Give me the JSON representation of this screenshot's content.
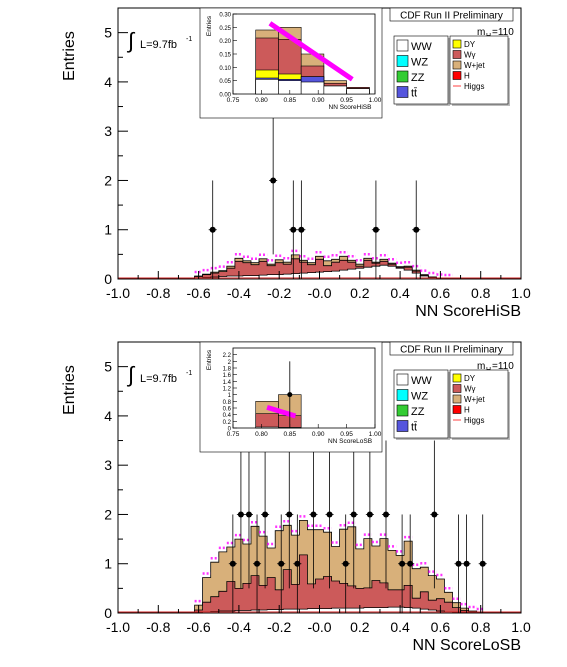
{
  "chart_data": [
    {
      "type": "bar",
      "subtype": "stacked-histogram",
      "header": "CDF Run II Preliminary",
      "lumi": "L=9.7fb",
      "lumi_sup": "-1",
      "lumi_integral_symbol": "∫",
      "mass_label": "m",
      "mass_sub": "H",
      "mass_value": "=110",
      "xlabel": "NN ScoreHiSB",
      "ylabel": "Entries",
      "xlim": [
        -1.0,
        1.0
      ],
      "ylim": [
        0,
        5.5
      ],
      "xticks": [
        "-1.0",
        "-0.8",
        "-0.6",
        "-0.4",
        "-0.2",
        "-0.0",
        "0.2",
        "0.4",
        "0.6",
        "0.8",
        "1.0"
      ],
      "yticks": [
        "0",
        "1",
        "2",
        "3",
        "4",
        "5"
      ],
      "legend": [
        {
          "label": "WW",
          "color": "#ffffff",
          "kind": "box"
        },
        {
          "label": "DY",
          "color": "#ffff00",
          "kind": "box"
        },
        {
          "label": "WZ",
          "color": "#00ffff",
          "kind": "box"
        },
        {
          "label": "Wγ",
          "color": "#cc5a5a",
          "kind": "box"
        },
        {
          "label": "ZZ",
          "color": "#33cc33",
          "kind": "box"
        },
        {
          "label": "W+jet",
          "color": "#d8b07a",
          "kind": "box"
        },
        {
          "label": "tt̄",
          "color": "#5555dd",
          "kind": "box"
        },
        {
          "label": "H",
          "color": "#ff0000",
          "kind": "box"
        },
        {
          "label": "Higgs",
          "color": "#ff4040",
          "kind": "line"
        }
      ],
      "bin_edges_start": -0.62,
      "bin_width": 0.04,
      "series": [
        {
          "name": "WW",
          "color": "#ffffff",
          "values": [
            0.02,
            0.03,
            0.04,
            0.05,
            0.06,
            0.06,
            0.07,
            0.07,
            0.08,
            0.09,
            0.09,
            0.1,
            0.11,
            0.12,
            0.13,
            0.14,
            0.15,
            0.16,
            0.18,
            0.2,
            0.22,
            0.24,
            0.26,
            0.28,
            0.26,
            0.22,
            0.18,
            0.12,
            0.06,
            0.03,
            0.01,
            0.0
          ]
        },
        {
          "name": "Wγ",
          "color": "#cc5a5a",
          "values": [
            0.03,
            0.06,
            0.08,
            0.1,
            0.16,
            0.3,
            0.26,
            0.22,
            0.28,
            0.18,
            0.24,
            0.2,
            0.3,
            0.22,
            0.16,
            0.26,
            0.12,
            0.18,
            0.2,
            0.14,
            0.04,
            0.14,
            0.06,
            0.08,
            0.04,
            0.02,
            0.06,
            0.04,
            0.02,
            0.01,
            0.0,
            0.0
          ]
        },
        {
          "name": "W+jet",
          "color": "#d8b07a",
          "values": [
            0.01,
            0.01,
            0.02,
            0.02,
            0.04,
            0.06,
            0.04,
            0.04,
            0.05,
            0.03,
            0.06,
            0.04,
            0.08,
            0.04,
            0.04,
            0.06,
            0.1,
            0.06,
            0.08,
            0.04,
            0.04,
            0.04,
            0.02,
            0.04,
            0.02,
            0.01,
            0.02,
            0.02,
            0.01,
            0.0,
            0.0,
            0.0
          ]
        }
      ],
      "band_color": "#ff00ff",
      "data_points": [
        {
          "x": -0.53,
          "y": 1,
          "err": 1.0
        },
        {
          "x": -0.23,
          "y": 2,
          "err": 1.5
        },
        {
          "x": -0.13,
          "y": 1,
          "err": 1.0
        },
        {
          "x": -0.09,
          "y": 1,
          "err": 1.0
        },
        {
          "x": 0.28,
          "y": 1,
          "err": 1.0
        },
        {
          "x": 0.48,
          "y": 1,
          "err": 1.0
        }
      ],
      "inset": {
        "ylabel": "Entries",
        "xlabel": "NN ScoreHiSB",
        "xlim": [
          0.75,
          1.0
        ],
        "ylim": [
          0,
          0.3
        ],
        "xticks": [
          "0.75",
          "0.80",
          "0.85",
          "0.90",
          "0.95",
          "1.00"
        ],
        "yticks": [
          "0.00",
          "0.05",
          "0.10",
          "0.15",
          "0.20",
          "0.25",
          "0.30"
        ],
        "bin_edges": [
          0.75,
          0.79,
          0.83,
          0.87,
          0.91,
          0.95,
          0.99
        ],
        "stack": [
          {
            "name": "WW",
            "color": "#ffffff",
            "values": [
              0.0,
              0.055,
              0.05,
              0.045,
              0.03,
              0.02
            ]
          },
          {
            "name": "tt̄",
            "color": "#5555dd",
            "values": [
              0.0,
              0.005,
              0.005,
              0.02,
              0.0,
              0.0
            ]
          },
          {
            "name": "DY",
            "color": "#ffff00",
            "values": [
              0.0,
              0.03,
              0.02,
              0.0,
              0.0,
              0.0
            ]
          },
          {
            "name": "Wγ",
            "color": "#cc5a5a",
            "values": [
              0.0,
              0.12,
              0.13,
              0.04,
              0.01,
              0.005
            ]
          },
          {
            "name": "W+jet",
            "color": "#d8b07a",
            "values": [
              0.0,
              0.03,
              0.045,
              0.045,
              0.01,
              0.0
            ]
          }
        ],
        "higgs_line": {
          "x": [
            0.815,
            0.96
          ],
          "y": [
            0.265,
            0.055
          ]
        }
      }
    },
    {
      "type": "bar",
      "subtype": "stacked-histogram",
      "header": "CDF Run II Preliminary",
      "lumi": "L=9.7fb",
      "lumi_sup": "-1",
      "lumi_integral_symbol": "∫",
      "mass_label": "m",
      "mass_sub": "H",
      "mass_value": "=110",
      "xlabel": "NN ScoreLoSB",
      "ylabel": "Entries",
      "xlim": [
        -1.0,
        1.0
      ],
      "ylim": [
        0,
        5.5
      ],
      "xticks": [
        "-1.0",
        "-0.8",
        "-0.6",
        "-0.4",
        "-0.2",
        "-0.0",
        "0.2",
        "0.4",
        "0.6",
        "0.8",
        "1.0"
      ],
      "yticks": [
        "0",
        "1",
        "2",
        "3",
        "4",
        "5"
      ],
      "legend": [
        {
          "label": "WW",
          "color": "#ffffff",
          "kind": "box"
        },
        {
          "label": "DY",
          "color": "#ffff00",
          "kind": "box"
        },
        {
          "label": "WZ",
          "color": "#00ffff",
          "kind": "box"
        },
        {
          "label": "Wγ",
          "color": "#cc5a5a",
          "kind": "box"
        },
        {
          "label": "ZZ",
          "color": "#33cc33",
          "kind": "box"
        },
        {
          "label": "W+jet",
          "color": "#d8b07a",
          "kind": "box"
        },
        {
          "label": "tt̄",
          "color": "#5555dd",
          "kind": "box"
        },
        {
          "label": "H",
          "color": "#ff0000",
          "kind": "box"
        },
        {
          "label": "Higgs",
          "color": "#ff4040",
          "kind": "line"
        }
      ],
      "bin_edges_start": -0.62,
      "bin_width": 0.04,
      "series": [
        {
          "name": "WW",
          "color": "#ffffff",
          "values": [
            0.01,
            0.02,
            0.03,
            0.04,
            0.04,
            0.05,
            0.05,
            0.06,
            0.06,
            0.07,
            0.07,
            0.08,
            0.08,
            0.08,
            0.09,
            0.09,
            0.09,
            0.1,
            0.1,
            0.1,
            0.1,
            0.11,
            0.11,
            0.11,
            0.12,
            0.12,
            0.11,
            0.1,
            0.08,
            0.06,
            0.04,
            0.02,
            0.01,
            0.0,
            0.0,
            0.0
          ]
        },
        {
          "name": "Wγ",
          "color": "#cc5a5a",
          "values": [
            0.05,
            0.2,
            0.3,
            0.4,
            0.6,
            0.45,
            0.55,
            0.7,
            0.5,
            0.65,
            0.4,
            0.8,
            0.5,
            1.1,
            0.5,
            0.6,
            0.65,
            0.55,
            0.5,
            0.45,
            0.4,
            0.4,
            0.55,
            0.5,
            0.35,
            0.35,
            0.45,
            0.2,
            0.35,
            0.2,
            0.25,
            0.2,
            0.1,
            0.05,
            0.02,
            0.0
          ]
        },
        {
          "name": "W+jet",
          "color": "#d8b07a",
          "values": [
            0.1,
            0.5,
            0.7,
            0.8,
            0.7,
            1.0,
            0.8,
            1.0,
            1.0,
            0.6,
            1.2,
            0.9,
            1.0,
            0.7,
            1.1,
            1.0,
            0.9,
            0.7,
            1.1,
            1.2,
            0.8,
            1.0,
            0.7,
            0.9,
            0.8,
            0.7,
            0.9,
            0.6,
            0.5,
            0.5,
            0.4,
            0.2,
            0.1,
            0.05,
            0.02,
            0.0
          ]
        }
      ],
      "band_color": "#ff00ff",
      "data_points": [
        {
          "x": -0.43,
          "y": 1,
          "err": 1.0
        },
        {
          "x": -0.39,
          "y": 2,
          "err": 1.5
        },
        {
          "x": -0.35,
          "y": 2,
          "err": 1.5
        },
        {
          "x": -0.31,
          "y": 1,
          "err": 1.0
        },
        {
          "x": -0.27,
          "y": 2,
          "err": 1.5
        },
        {
          "x": -0.19,
          "y": 1,
          "err": 1.0
        },
        {
          "x": -0.15,
          "y": 2,
          "err": 1.5
        },
        {
          "x": -0.11,
          "y": 1,
          "err": 1.0
        },
        {
          "x": -0.03,
          "y": 2,
          "err": 1.5
        },
        {
          "x": 0.05,
          "y": 2,
          "err": 1.5
        },
        {
          "x": 0.13,
          "y": 1,
          "err": 1.0
        },
        {
          "x": 0.17,
          "y": 2,
          "err": 1.5
        },
        {
          "x": 0.25,
          "y": 2,
          "err": 1.5
        },
        {
          "x": 0.33,
          "y": 2,
          "err": 1.5
        },
        {
          "x": 0.41,
          "y": 1,
          "err": 1.0
        },
        {
          "x": 0.45,
          "y": 1,
          "err": 1.0
        },
        {
          "x": 0.57,
          "y": 2,
          "err": 1.5
        },
        {
          "x": 0.69,
          "y": 1,
          "err": 1.0
        },
        {
          "x": 0.73,
          "y": 1,
          "err": 1.0
        },
        {
          "x": 0.81,
          "y": 1,
          "err": 1.0
        }
      ],
      "inset": {
        "ylabel": "Entries",
        "xlabel": "NN ScoreLoSB",
        "xlim": [
          0.75,
          1.0
        ],
        "ylim": [
          0,
          2.4
        ],
        "xticks": [
          "0.75",
          "0.80",
          "0.85",
          "0.90",
          "0.95",
          "1.00"
        ],
        "yticks": [
          "0",
          "0.2",
          "0.4",
          "0.6",
          "0.8",
          "1",
          "1.2",
          "1.4",
          "1.6",
          "1.8",
          "2",
          "2.2"
        ],
        "bin_edges": [
          0.75,
          0.79,
          0.83,
          0.87,
          0.91,
          0.95,
          0.99
        ],
        "stack": [
          {
            "name": "WW",
            "color": "#ffffff",
            "values": [
              0.0,
              0.03,
              0.02,
              0.0,
              0.0,
              0.0
            ]
          },
          {
            "name": "Wγ",
            "color": "#cc5a5a",
            "values": [
              0.0,
              0.4,
              0.35,
              0.0,
              0.0,
              0.0
            ]
          },
          {
            "name": "W+jet",
            "color": "#d8b07a",
            "values": [
              0.0,
              0.37,
              0.63,
              0.0,
              0.0,
              0.0
            ]
          }
        ],
        "data_points": [
          {
            "x": 0.85,
            "y": 1,
            "err": 1.0
          }
        ],
        "higgs_line": {
          "x": [
            0.81,
            0.86
          ],
          "y": [
            0.62,
            0.36
          ]
        }
      }
    }
  ]
}
